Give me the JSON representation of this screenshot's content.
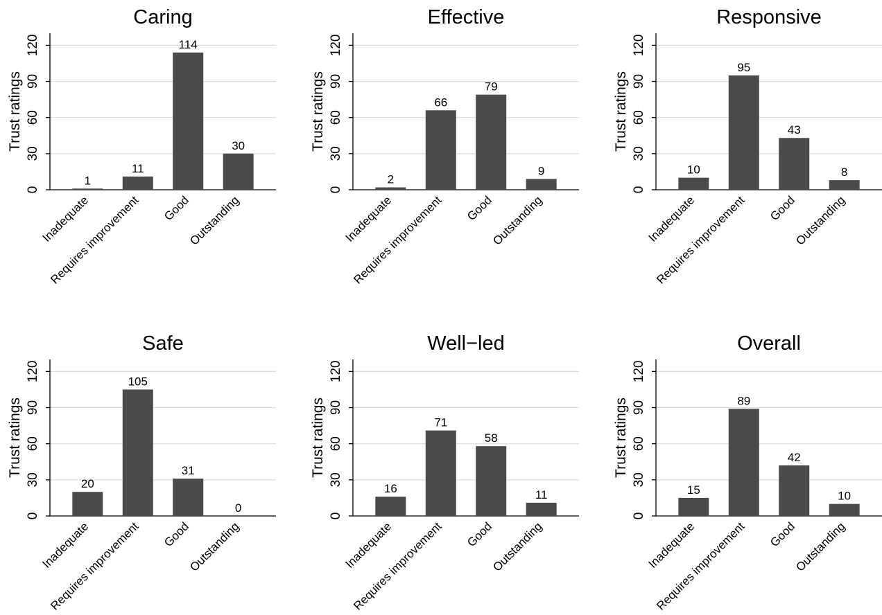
{
  "chart_data": [
    {
      "type": "bar",
      "title": "Caring",
      "ylabel": "Trust ratings",
      "categories": [
        "Inadequate",
        "Requires improvement",
        "Good",
        "Outstanding"
      ],
      "values": [
        1,
        11,
        114,
        30
      ],
      "ylim": [
        0,
        130
      ],
      "yticks": [
        0,
        30,
        60,
        90,
        120
      ],
      "grid": true
    },
    {
      "type": "bar",
      "title": "Effective",
      "ylabel": "Trust ratings",
      "categories": [
        "Inadequate",
        "Requires improvement",
        "Good",
        "Outstanding"
      ],
      "values": [
        2,
        66,
        79,
        9
      ],
      "ylim": [
        0,
        130
      ],
      "yticks": [
        0,
        30,
        60,
        90,
        120
      ],
      "grid": true
    },
    {
      "type": "bar",
      "title": "Responsive",
      "ylabel": "Trust ratings",
      "categories": [
        "Inadequate",
        "Requires improvement",
        "Good",
        "Outstanding"
      ],
      "values": [
        10,
        95,
        43,
        8
      ],
      "ylim": [
        0,
        130
      ],
      "yticks": [
        0,
        30,
        60,
        90,
        120
      ],
      "grid": true
    },
    {
      "type": "bar",
      "title": "Safe",
      "ylabel": "Trust ratings",
      "categories": [
        "Inadequate",
        "Requires improvement",
        "Good",
        "Outstanding"
      ],
      "values": [
        20,
        105,
        31,
        0
      ],
      "ylim": [
        0,
        130
      ],
      "yticks": [
        0,
        30,
        60,
        90,
        120
      ],
      "grid": true
    },
    {
      "type": "bar",
      "title": "Well−led",
      "ylabel": "Trust ratings",
      "categories": [
        "Inadequate",
        "Requires improvement",
        "Good",
        "Outstanding"
      ],
      "values": [
        16,
        71,
        58,
        11
      ],
      "ylim": [
        0,
        130
      ],
      "yticks": [
        0,
        30,
        60,
        90,
        120
      ],
      "grid": true
    },
    {
      "type": "bar",
      "title": "Overall",
      "ylabel": "Trust ratings",
      "categories": [
        "Inadequate",
        "Requires improvement",
        "Good",
        "Outstanding"
      ],
      "values": [
        15,
        89,
        42,
        10
      ],
      "ylim": [
        0,
        130
      ],
      "yticks": [
        0,
        30,
        60,
        90,
        120
      ],
      "grid": true
    }
  ]
}
